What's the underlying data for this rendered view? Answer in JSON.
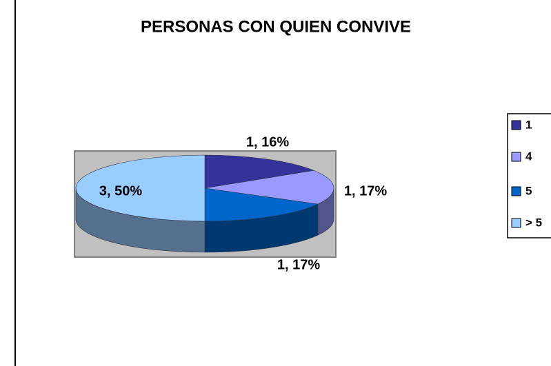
{
  "chart_data": {
    "type": "pie",
    "title": "PERSONAS CON QUIEN CONVIVE",
    "categories": [
      "1",
      "4",
      "5",
      "> 5"
    ],
    "values": [
      16,
      17,
      17,
      50
    ],
    "value_labels": [
      "1, 16%",
      "1, 17%",
      "1, 17%",
      "3, 50%"
    ],
    "colors": [
      "#333399",
      "#9999ff",
      "#0066cc",
      "#99ccff"
    ],
    "legend": "right"
  }
}
